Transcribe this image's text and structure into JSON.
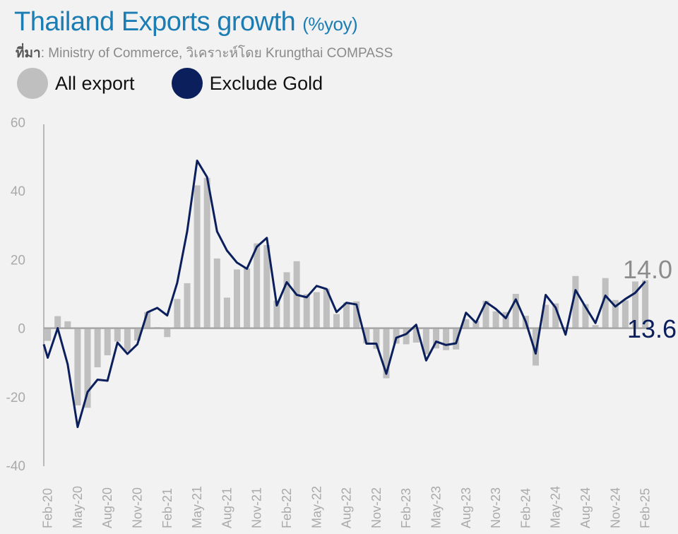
{
  "header": {
    "title": "Thailand Exports growth",
    "unit": "(%yoy)",
    "source_prefix": "ที่มา",
    "source_text": ": Ministry of Commerce, วิเคราะห์โดย Krungthai COMPASS"
  },
  "legend": [
    {
      "label": "All export",
      "color": "#bfbfbf"
    },
    {
      "label": "Exclude Gold",
      "color": "#0b1f5c"
    }
  ],
  "chart_data": {
    "type": "bar+line",
    "title": "Thailand Exports growth (%yoy)",
    "xlabel": "",
    "ylabel": "",
    "ylim": [
      -40,
      60
    ],
    "yticks": [
      60,
      40,
      20,
      0,
      -20,
      -40
    ],
    "grid": false,
    "legend_position": "top-left",
    "x_tick_labels": [
      "Feb-20",
      "May-20",
      "Aug-20",
      "Nov-20",
      "Feb-21",
      "May-21",
      "Aug-21",
      "Nov-21",
      "Feb-22",
      "May-22",
      "Aug-22",
      "Nov-22",
      "Feb-23",
      "May-23",
      "Aug-23",
      "Nov-23",
      "Feb-24",
      "May-24",
      "Aug-24",
      "Nov-24",
      "Feb-25"
    ],
    "categories": [
      "Feb-20",
      "Mar-20",
      "Apr-20",
      "May-20",
      "Jun-20",
      "Jul-20",
      "Aug-20",
      "Sep-20",
      "Oct-20",
      "Nov-20",
      "Dec-20",
      "Jan-21",
      "Feb-21",
      "Mar-21",
      "Apr-21",
      "May-21",
      "Jun-21",
      "Jul-21",
      "Aug-21",
      "Sep-21",
      "Oct-21",
      "Nov-21",
      "Dec-21",
      "Jan-22",
      "Feb-22",
      "Mar-22",
      "Apr-22",
      "May-22",
      "Jun-22",
      "Jul-22",
      "Aug-22",
      "Sep-22",
      "Oct-22",
      "Nov-22",
      "Dec-22",
      "Jan-23",
      "Feb-23",
      "Mar-23",
      "Apr-23",
      "May-23",
      "Jun-23",
      "Jul-23",
      "Aug-23",
      "Sep-23",
      "Oct-23",
      "Nov-23",
      "Dec-23",
      "Jan-24",
      "Feb-24",
      "Mar-24",
      "Apr-24",
      "May-24",
      "Jun-24",
      "Jul-24",
      "Aug-24",
      "Sep-24",
      "Oct-24",
      "Nov-24",
      "Dec-24",
      "Jan-25",
      "Feb-25"
    ],
    "series": [
      {
        "name": "All export",
        "type": "bar",
        "color": "#bfbfbf",
        "values": [
          -3.7,
          3.5,
          2.0,
          -22.5,
          -23.2,
          -11.4,
          -7.9,
          -3.9,
          -6.7,
          -3.6,
          4.7,
          0.3,
          -2.6,
          8.5,
          13.1,
          41.6,
          43.8,
          20.3,
          8.9,
          17.1,
          17.4,
          24.7,
          24.2,
          8.0,
          16.3,
          19.5,
          9.9,
          10.5,
          11.5,
          4.1,
          7.5,
          7.8,
          -4.4,
          -6.0,
          -14.6,
          -4.5,
          -4.7,
          -4.2,
          -7.6,
          -5.9,
          -6.4,
          -6.2,
          2.6,
          2.1,
          8.0,
          4.9,
          4.7,
          10.0,
          3.6,
          -10.9,
          6.8,
          7.2,
          0.3,
          15.2,
          7.0,
          0.9,
          14.6,
          8.2,
          8.1,
          13.6,
          14.0
        ]
      },
      {
        "name": "Exclude Gold",
        "type": "line",
        "color": "#0b1f5c",
        "values": [
          -8.6,
          0.0,
          -10.5,
          -28.8,
          -18.6,
          -15.0,
          -15.3,
          -4.2,
          -7.5,
          -4.7,
          4.6,
          5.9,
          3.7,
          13.2,
          28.2,
          48.8,
          44.0,
          28.2,
          22.6,
          19.1,
          17.3,
          23.7,
          26.3,
          6.6,
          13.4,
          9.7,
          9.0,
          12.3,
          11.4,
          4.7,
          7.4,
          6.9,
          -4.5,
          -4.5,
          -13.3,
          -2.8,
          -1.7,
          1.0,
          -9.4,
          -3.9,
          -4.9,
          -4.4,
          4.5,
          1.6,
          7.6,
          5.6,
          2.9,
          8.4,
          1.9,
          -7.4,
          9.7,
          6.0,
          -1.9,
          11.1,
          6.2,
          1.5,
          9.5,
          6.3,
          8.5,
          10.3,
          13.6
        ]
      }
    ],
    "annotations": [
      {
        "text": "14.0",
        "series": "All export",
        "at": "Feb-25"
      },
      {
        "text": "13.6",
        "series": "Exclude Gold",
        "at": "Feb-25"
      }
    ]
  }
}
